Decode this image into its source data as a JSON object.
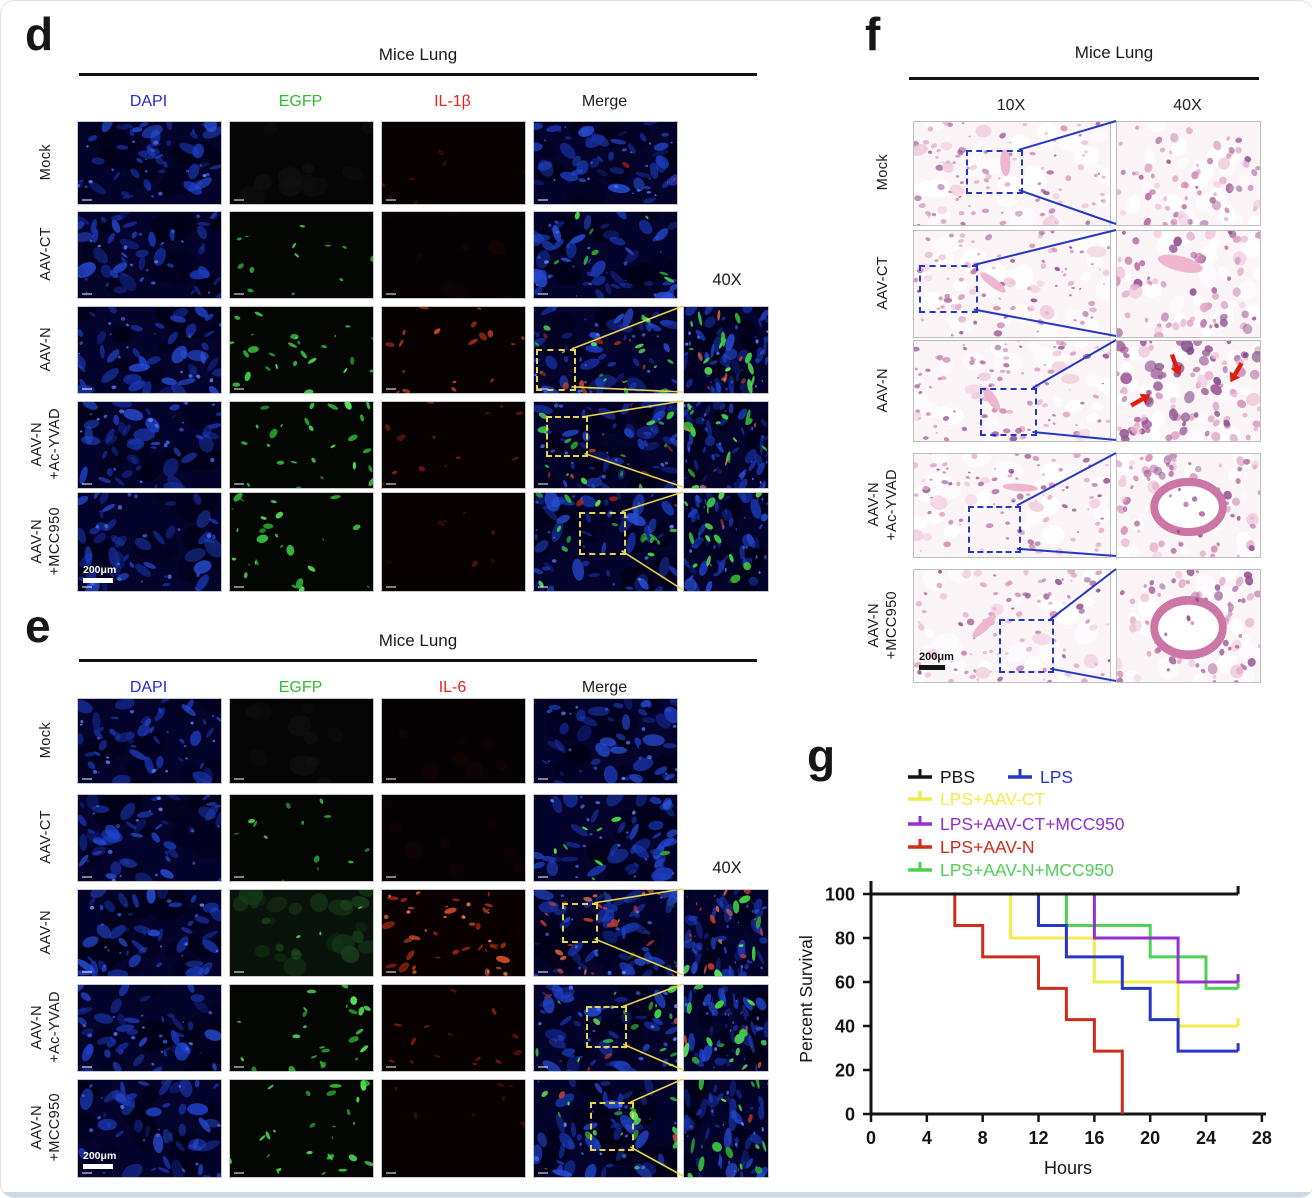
{
  "panels": {
    "d": {
      "letter": "d",
      "title": "Mice Lung",
      "magnification_label": "40X",
      "scale_label": "200μm",
      "box_color": "#e6d44e",
      "columns": [
        {
          "label": "DAPI",
          "color": "#2328d8"
        },
        {
          "label": "EGFP",
          "color": "#30ba30"
        },
        {
          "label": "IL-1β",
          "color": "#e3261d"
        },
        {
          "label": "Merge",
          "color": "#1c1c1c"
        }
      ],
      "rows": [
        {
          "label_lines": [
            "Mock"
          ],
          "egfp_signal": "none",
          "marker_signal": "trace",
          "has_inset": false
        },
        {
          "label_lines": [
            "AAV-CT"
          ],
          "egfp_signal": "sparse",
          "marker_signal": "none",
          "has_inset": false
        },
        {
          "label_lines": [
            "AAV-N"
          ],
          "egfp_signal": "many",
          "marker_signal": "medium",
          "has_inset": true
        },
        {
          "label_lines": [
            "AAV-N",
            "+Ac-YVAD"
          ],
          "egfp_signal": "many",
          "marker_signal": "faint",
          "has_inset": true
        },
        {
          "label_lines": [
            "AAV-N",
            "+MCC950"
          ],
          "egfp_signal": "many",
          "marker_signal": "trace",
          "has_inset": true
        }
      ]
    },
    "e": {
      "letter": "e",
      "title": "Mice Lung",
      "magnification_label": "40X",
      "scale_label": "200μm",
      "box_color": "#e6d44e",
      "columns": [
        {
          "label": "DAPI",
          "color": "#2328d8"
        },
        {
          "label": "EGFP",
          "color": "#30ba30"
        },
        {
          "label": "IL-6",
          "color": "#e3261d"
        },
        {
          "label": "Merge",
          "color": "#1c1c1c"
        }
      ],
      "rows": [
        {
          "label_lines": [
            "Mock"
          ],
          "egfp_signal": "none",
          "marker_signal": "none",
          "has_inset": false
        },
        {
          "label_lines": [
            "AAV-CT"
          ],
          "egfp_signal": "sparse",
          "marker_signal": "none",
          "has_inset": false
        },
        {
          "label_lines": [
            "AAV-N"
          ],
          "egfp_signal": "faint",
          "marker_signal": "strong",
          "has_inset": true
        },
        {
          "label_lines": [
            "AAV-N",
            "+Ac-YVAD"
          ],
          "egfp_signal": "many",
          "marker_signal": "faint",
          "has_inset": true
        },
        {
          "label_lines": [
            "AAV-N",
            "+MCC950"
          ],
          "egfp_signal": "many",
          "marker_signal": "trace",
          "has_inset": true
        }
      ]
    },
    "f": {
      "letter": "f",
      "title": "Mice Lung",
      "scale_label": "200μm",
      "box_color": "#2438c4",
      "arrow_color": "#e01c10",
      "columns": [
        {
          "label": "10X"
        },
        {
          "label": "40X"
        }
      ],
      "rows": [
        {
          "label_lines": [
            "Mock"
          ],
          "has_arrows": false
        },
        {
          "label_lines": [
            "AAV-CT"
          ],
          "has_arrows": false
        },
        {
          "label_lines": [
            "AAV-N"
          ],
          "has_arrows": true
        },
        {
          "label_lines": [
            "AAV-N",
            "+Ac-YVAD"
          ],
          "has_arrows": false
        },
        {
          "label_lines": [
            "AAV-N",
            "+MCC950"
          ],
          "has_arrows": false
        }
      ]
    },
    "g": {
      "letter": "g"
    }
  },
  "chart_data": {
    "type": "line",
    "subtype": "kaplan-meier-step",
    "title": "",
    "xlabel": "Hours",
    "ylabel": "Percent Survival",
    "xlim": [
      0,
      28
    ],
    "ylim": [
      0,
      110
    ],
    "xticks": [
      0,
      4,
      8,
      12,
      16,
      20,
      24,
      28
    ],
    "yticks": [
      0,
      20,
      40,
      60,
      80,
      100
    ],
    "grid": false,
    "legend_position": "top",
    "series": [
      {
        "name": "PBS",
        "color": "#141414",
        "points": [
          [
            0,
            100
          ],
          [
            26.3,
            100
          ]
        ]
      },
      {
        "name": "LPS",
        "color": "#2836c8",
        "points": [
          [
            0,
            100
          ],
          [
            12,
            100
          ],
          [
            12,
            85.7
          ],
          [
            14,
            85.7
          ],
          [
            14,
            71.4
          ],
          [
            18,
            71.4
          ],
          [
            18,
            57.1
          ],
          [
            20,
            57.1
          ],
          [
            20,
            42.9
          ],
          [
            22,
            42.9
          ],
          [
            22,
            28.6
          ],
          [
            26.3,
            28.6
          ]
        ]
      },
      {
        "name": "LPS+AAV-CT",
        "color": "#f2ec4a",
        "points": [
          [
            0,
            100
          ],
          [
            10,
            100
          ],
          [
            10,
            80
          ],
          [
            16,
            80
          ],
          [
            16,
            60
          ],
          [
            22,
            60
          ],
          [
            22,
            40
          ],
          [
            26.3,
            40
          ]
        ]
      },
      {
        "name": "LPS+AAV-CT+MCC950",
        "color": "#9430c8",
        "points": [
          [
            0,
            100
          ],
          [
            16,
            100
          ],
          [
            16,
            80
          ],
          [
            22,
            80
          ],
          [
            22,
            60
          ],
          [
            26.3,
            60
          ]
        ]
      },
      {
        "name": "LPS+AAV-N",
        "color": "#d02c1b",
        "points": [
          [
            0,
            100
          ],
          [
            6,
            100
          ],
          [
            6,
            85.7
          ],
          [
            8,
            85.7
          ],
          [
            8,
            71.4
          ],
          [
            12,
            71.4
          ],
          [
            12,
            57.1
          ],
          [
            14,
            57.1
          ],
          [
            14,
            42.9
          ],
          [
            16,
            42.9
          ],
          [
            16,
            28.6
          ],
          [
            18,
            28.6
          ],
          [
            18,
            0
          ]
        ]
      },
      {
        "name": "LPS+AAV-N+MCC950",
        "color": "#4fd055",
        "points": [
          [
            0,
            100
          ],
          [
            14,
            100
          ],
          [
            14,
            85.7
          ],
          [
            20,
            85.7
          ],
          [
            20,
            71.4
          ],
          [
            24,
            71.4
          ],
          [
            24,
            57.1
          ],
          [
            26.3,
            57.1
          ]
        ]
      }
    ]
  }
}
